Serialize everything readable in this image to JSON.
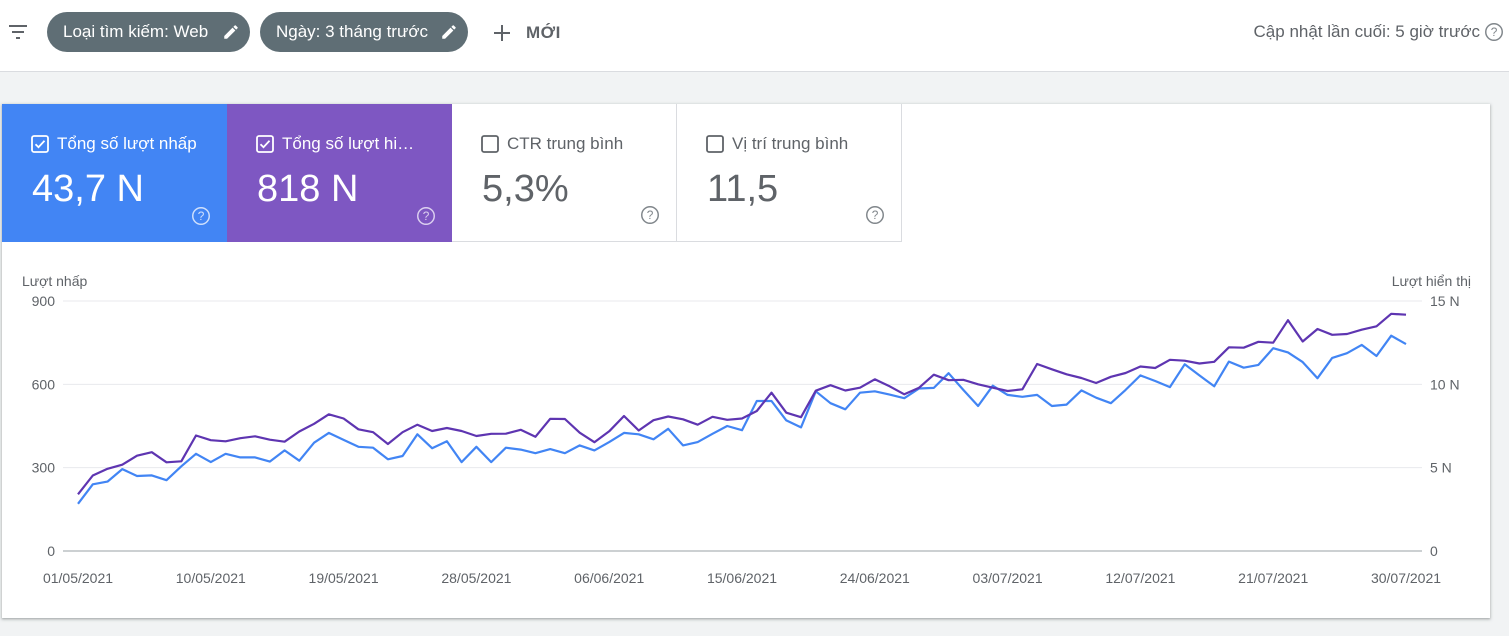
{
  "toolbar": {
    "chip_search_type": "Loại tìm kiếm: Web",
    "chip_date": "Ngày: 3 tháng trước",
    "new_label": "MỚI",
    "last_updated": "Cập nhật lần cuối: 5 giờ trước"
  },
  "metrics": [
    {
      "label": "Tổng số lượt nhấp",
      "value": "43,7 N",
      "checked": true,
      "color": "#4285f4"
    },
    {
      "label": "Tổng số lượt hiển thị",
      "value": "818 N",
      "checked": true,
      "color": "#7e57c2"
    },
    {
      "label": "CTR trung bình",
      "value": "5,3%",
      "checked": false
    },
    {
      "label": "Vị trí trung bình",
      "value": "11,5",
      "checked": false
    }
  ],
  "chart_data": {
    "type": "line",
    "ylabel_left": "Lượt nhấp",
    "ylabel_right": "Lượt hiển thị",
    "y_left_ticks": [
      "900",
      "600",
      "300",
      "0"
    ],
    "y_right_ticks": [
      "15 N",
      "10 N",
      "5 N",
      "0"
    ],
    "ylim_left": [
      0,
      900
    ],
    "ylim_right": [
      0,
      15000
    ],
    "x_ticks": [
      "01/05/2021",
      "10/05/2021",
      "19/05/2021",
      "28/05/2021",
      "06/06/2021",
      "15/06/2021",
      "24/06/2021",
      "03/07/2021",
      "12/07/2021",
      "21/07/2021",
      "30/07/2021"
    ],
    "x_start": "01/05/2021",
    "x_end": "30/07/2021",
    "series": [
      {
        "name": "Lượt nhấp",
        "color": "#4285f4",
        "axis": "left",
        "values": [
          170,
          240,
          250,
          295,
          270,
          272,
          255,
          305,
          350,
          320,
          350,
          337,
          337,
          322,
          362,
          325,
          390,
          425,
          400,
          375,
          372,
          330,
          342,
          420,
          370,
          395,
          320,
          375,
          320,
          372,
          365,
          352,
          367,
          352,
          380,
          362,
          392,
          425,
          420,
          402,
          440,
          380,
          392,
          422,
          450,
          435,
          540,
          540,
          470,
          445,
          575,
          532,
          510,
          570,
          575,
          563,
          550,
          585,
          587,
          640,
          580,
          522,
          595,
          562,
          555,
          562,
          522,
          527,
          578,
          552,
          532,
          580,
          632,
          612,
          590,
          672,
          632,
          593,
          682,
          660,
          670,
          730,
          715,
          680,
          622,
          695,
          712,
          742,
          702,
          775,
          745
        ]
      },
      {
        "name": "Lượt hiển thị",
        "color": "#5e35b1",
        "axis": "right",
        "values": [
          3400,
          4530,
          4930,
          5180,
          5720,
          5930,
          5320,
          5380,
          6930,
          6650,
          6580,
          6770,
          6880,
          6680,
          6560,
          7170,
          7630,
          8200,
          7950,
          7300,
          7130,
          6420,
          7130,
          7580,
          7200,
          7380,
          7200,
          6900,
          7030,
          7040,
          7270,
          6850,
          7930,
          7920,
          7100,
          6530,
          7180,
          8100,
          7230,
          7850,
          8070,
          7900,
          7580,
          8050,
          7870,
          7950,
          8400,
          9500,
          8300,
          8030,
          9620,
          9950,
          9630,
          9800,
          10300,
          9880,
          9400,
          9800,
          10580,
          10250,
          10270,
          10000,
          9800,
          9600,
          9700,
          11220,
          10900,
          10600,
          10380,
          10080,
          10450,
          10680,
          11070,
          10980,
          11470,
          11420,
          11250,
          11350,
          12220,
          12200,
          12550,
          12500,
          13850,
          12570,
          13320,
          12970,
          13020,
          13280,
          13480,
          14230,
          14180
        ]
      }
    ]
  }
}
